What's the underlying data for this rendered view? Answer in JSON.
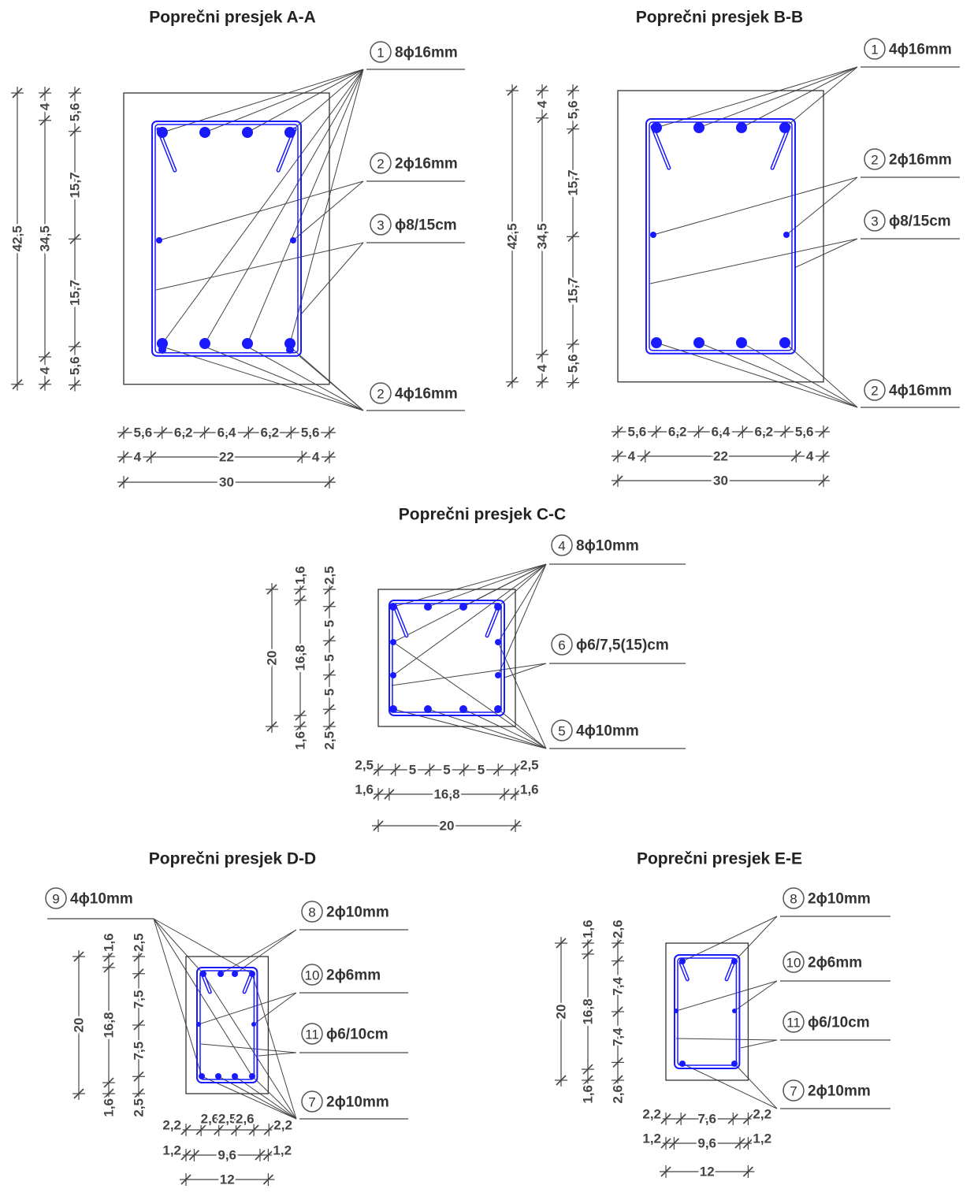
{
  "sections": [
    {
      "title": "Poprečni presjek A-A",
      "callouts": [
        {
          "num": "1",
          "text": "8ϕ16mm"
        },
        {
          "num": "2",
          "text": "2ϕ16mm"
        },
        {
          "num": "3",
          "text": "ϕ8/15cm"
        },
        {
          "num": "2",
          "text": "4ϕ16mm"
        }
      ],
      "dims": {
        "vertical": [
          [
            "42,5"
          ],
          [
            "4",
            "34,5",
            "4"
          ],
          [
            "5,6",
            "15,7",
            "15,7",
            "5,6"
          ]
        ],
        "horizontal": [
          [
            "5,6",
            "6,2",
            "6,4",
            "6,2",
            "5,6"
          ],
          [
            "4",
            "22",
            "4"
          ],
          [
            "30"
          ]
        ]
      }
    },
    {
      "title": "Poprečni presjek B-B",
      "callouts": [
        {
          "num": "1",
          "text": "4ϕ16mm"
        },
        {
          "num": "2",
          "text": "2ϕ16mm"
        },
        {
          "num": "3",
          "text": "ϕ8/15cm"
        },
        {
          "num": "2",
          "text": "4ϕ16mm"
        }
      ],
      "dims": {
        "vertical": [
          [
            "42,5"
          ],
          [
            "4",
            "34,5",
            "4"
          ],
          [
            "5,6",
            "15,7",
            "15,7",
            "5,6"
          ]
        ],
        "horizontal": [
          [
            "5,6",
            "6,2",
            "6,4",
            "6,2",
            "5,6"
          ],
          [
            "4",
            "22",
            "4"
          ],
          [
            "30"
          ]
        ]
      }
    },
    {
      "title": "Poprečni presjek C-C",
      "callouts": [
        {
          "num": "4",
          "text": "8ϕ10mm"
        },
        {
          "num": "6",
          "text": "ϕ6/7,5(15)cm"
        },
        {
          "num": "5",
          "text": "4ϕ10mm"
        }
      ],
      "dims": {
        "vertical": [
          [
            "20"
          ],
          [
            "1,6",
            "16,8",
            "1,6"
          ],
          [
            "2,5",
            "5",
            "5",
            "5",
            "2,5"
          ]
        ],
        "horizontal": [
          [
            "2,5",
            "5",
            "5",
            "5",
            "2,5"
          ],
          [
            "1,6",
            "16,8",
            "1,6"
          ],
          [
            "20"
          ]
        ]
      }
    },
    {
      "title": "Poprečni presjek D-D",
      "callouts": [
        {
          "num": "9",
          "text": "4ϕ10mm"
        },
        {
          "num": "8",
          "text": "2ϕ10mm"
        },
        {
          "num": "10",
          "text": "2ϕ6mm"
        },
        {
          "num": "11",
          "text": "ϕ6/10cm"
        },
        {
          "num": "7",
          "text": "2ϕ10mm"
        }
      ],
      "dims": {
        "vertical": [
          [
            "20"
          ],
          [
            "1,6",
            "16,8",
            "1,6"
          ],
          [
            "2,5",
            "7,5",
            "7,5",
            "2,5"
          ]
        ],
        "horizontal": [
          [
            "2,2",
            "2,6",
            "2,5",
            "2,6",
            "2,2"
          ],
          [
            "1,2",
            "9,6",
            "1,2"
          ],
          [
            "12"
          ]
        ]
      }
    },
    {
      "title": "Poprečni presjek E-E",
      "callouts": [
        {
          "num": "8",
          "text": "2ϕ10mm"
        },
        {
          "num": "10",
          "text": "2ϕ6mm"
        },
        {
          "num": "11",
          "text": "ϕ6/10cm"
        },
        {
          "num": "7",
          "text": "2ϕ10mm"
        }
      ],
      "dims": {
        "vertical": [
          [
            "20"
          ],
          [
            "1,6",
            "16,8",
            "1,6"
          ],
          [
            "2,6",
            "7,4",
            "7,4",
            "2,6"
          ]
        ],
        "horizontal": [
          [
            "2,2",
            "7,6",
            "2,2"
          ],
          [
            "1,2",
            "9,6",
            "1,2"
          ],
          [
            "12"
          ]
        ]
      }
    }
  ]
}
